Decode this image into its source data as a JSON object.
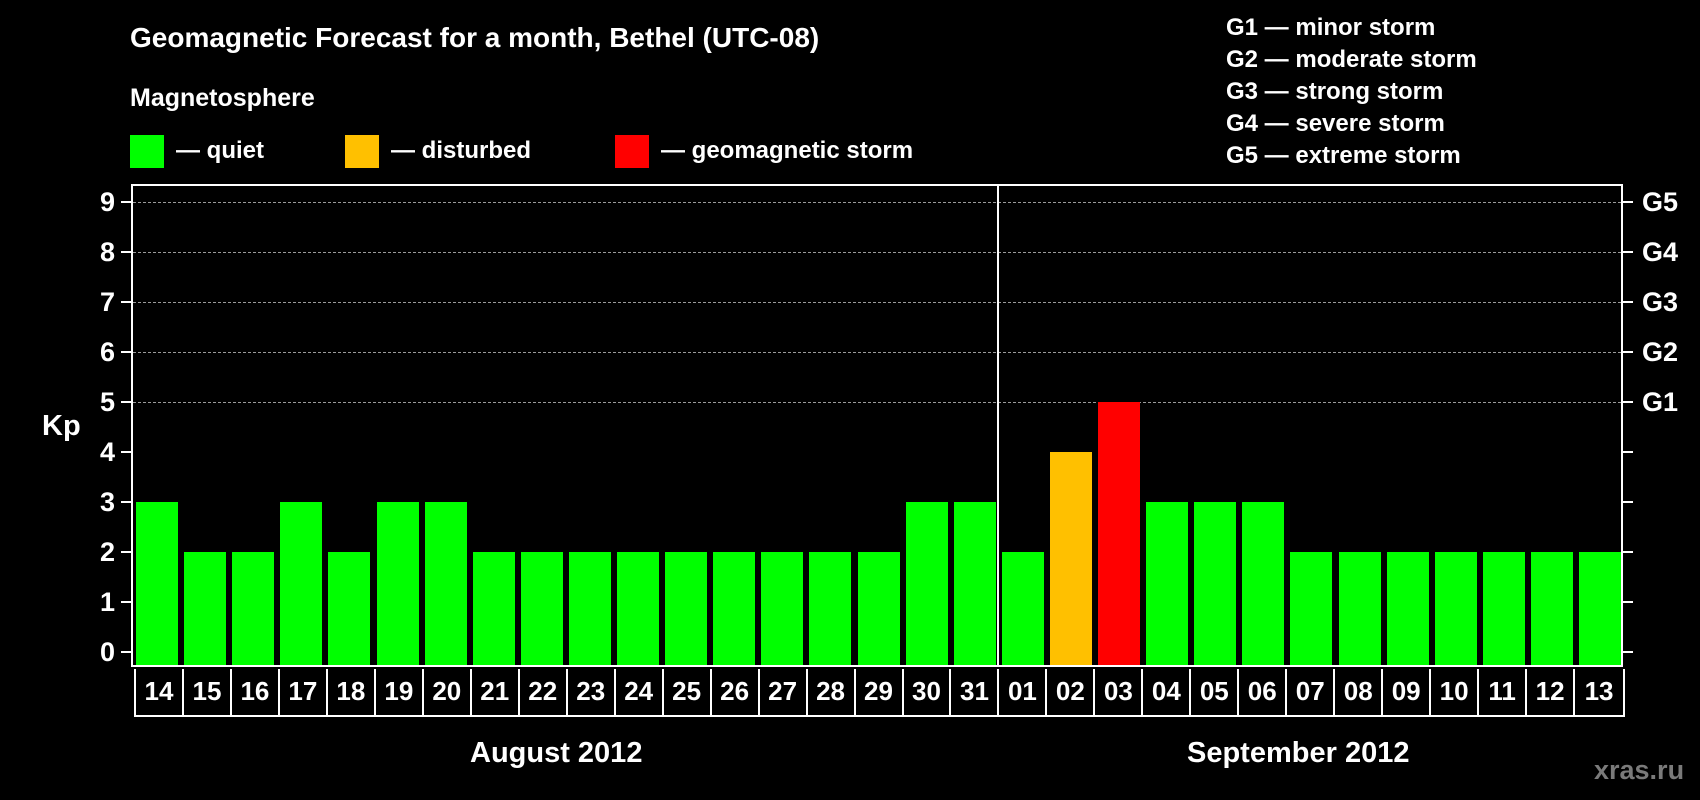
{
  "header": {
    "title": "Geomagnetic Forecast for a month, Bethel (UTC-08)",
    "subtitle": "Magnetosphere"
  },
  "legend": [
    {
      "label": "— quiet",
      "color": "#00ff00"
    },
    {
      "label": "— disturbed",
      "color": "#ffc000"
    },
    {
      "label": "— geomagnetic storm",
      "color": "#ff0000"
    }
  ],
  "g_scale_legend": [
    "G1 — minor storm",
    "G2 — moderate storm",
    "G3 — strong storm",
    "G4 — severe storm",
    "G5 — extreme storm"
  ],
  "axis": {
    "ylabel": "Kp",
    "yticks": [
      "0",
      "1",
      "2",
      "3",
      "4",
      "5",
      "6",
      "7",
      "8",
      "9"
    ],
    "right_ticks": {
      "5": "G1",
      "6": "G2",
      "7": "G3",
      "8": "G4",
      "9": "G5"
    }
  },
  "months": [
    "August 2012",
    "September 2012"
  ],
  "watermark": "xras.ru",
  "chart_data": {
    "type": "bar",
    "title": "Geomagnetic Forecast for a month, Bethel (UTC-08)",
    "subtitle": "Magnetosphere",
    "xlabel": "August 2012 / September 2012",
    "ylabel": "Kp",
    "ylim": [
      0,
      9
    ],
    "grid": "dashed horizontal at Kp 5-9",
    "legend_position": "top",
    "categories": [
      "14",
      "15",
      "16",
      "17",
      "18",
      "19",
      "20",
      "21",
      "22",
      "23",
      "24",
      "25",
      "26",
      "27",
      "28",
      "29",
      "30",
      "31",
      "01",
      "02",
      "03",
      "04",
      "05",
      "06",
      "07",
      "08",
      "09",
      "10",
      "11",
      "12",
      "13"
    ],
    "months": [
      {
        "name": "August 2012",
        "days": [
          "14",
          "15",
          "16",
          "17",
          "18",
          "19",
          "20",
          "21",
          "22",
          "23",
          "24",
          "25",
          "26",
          "27",
          "28",
          "29",
          "30",
          "31"
        ]
      },
      {
        "name": "September 2012",
        "days": [
          "01",
          "02",
          "03",
          "04",
          "05",
          "06",
          "07",
          "08",
          "09",
          "10",
          "11",
          "12",
          "13"
        ]
      }
    ],
    "values": [
      3,
      2,
      2,
      3,
      2,
      3,
      3,
      2,
      2,
      2,
      2,
      2,
      2,
      2,
      2,
      2,
      3,
      3,
      2,
      4,
      5,
      3,
      3,
      3,
      2,
      2,
      2,
      2,
      2,
      2,
      2
    ],
    "status": [
      "quiet",
      "quiet",
      "quiet",
      "quiet",
      "quiet",
      "quiet",
      "quiet",
      "quiet",
      "quiet",
      "quiet",
      "quiet",
      "quiet",
      "quiet",
      "quiet",
      "quiet",
      "quiet",
      "quiet",
      "quiet",
      "quiet",
      "disturbed",
      "geomagnetic storm",
      "quiet",
      "quiet",
      "quiet",
      "quiet",
      "quiet",
      "quiet",
      "quiet",
      "quiet",
      "quiet",
      "quiet"
    ],
    "status_colors": {
      "quiet": "#00ff00",
      "disturbed": "#ffc000",
      "geomagnetic storm": "#ff0000"
    },
    "secondary_axis": {
      "5": "G1",
      "6": "G2",
      "7": "G3",
      "8": "G4",
      "9": "G5"
    }
  }
}
